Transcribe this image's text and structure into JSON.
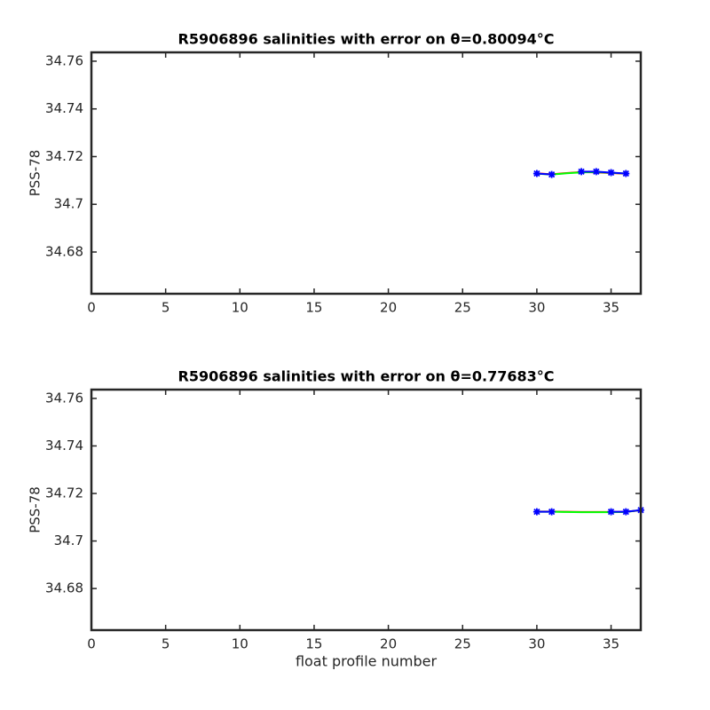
{
  "chart_data": [
    {
      "type": "line",
      "title": "R5906896 salinities with error on θ=0.80094°C",
      "ylabel": "PSS-78",
      "x": [
        30,
        31,
        32,
        33,
        34,
        35,
        36
      ],
      "series": [
        {
          "color": "#ff0000",
          "values": [
            34.713,
            34.7126,
            34.7131,
            34.7135,
            34.7134,
            34.7131,
            34.7128
          ]
        },
        {
          "color": "#00ff00",
          "values": [
            34.7128,
            34.7125,
            34.713,
            34.7134,
            34.7135,
            34.7132,
            34.7129
          ]
        },
        {
          "color": "#0000ff",
          "marker": "star",
          "values": [
            34.7129,
            34.7125,
            null,
            34.7137,
            34.7137,
            34.7133,
            34.7129
          ]
        }
      ],
      "xlim": [
        0,
        37
      ],
      "ylim": [
        34.6625,
        34.7637
      ],
      "xticks": [
        0,
        5,
        10,
        15,
        20,
        25,
        30,
        35
      ],
      "yticks": [
        34.68,
        34.7,
        34.72,
        34.74,
        34.76
      ],
      "grid": false
    },
    {
      "type": "line",
      "title": "R5906896 salinities with error on θ=0.77683°C",
      "ylabel": "PSS-78",
      "xlabel": "float profile number",
      "x": [
        30,
        31,
        32,
        33,
        34,
        35,
        36,
        37
      ],
      "series": [
        {
          "color": "#ff0000",
          "values": [
            34.7124,
            34.7124,
            34.7123,
            34.7122,
            34.7122,
            34.7122,
            34.7123,
            34.7129
          ]
        },
        {
          "color": "#00ff00",
          "values": [
            34.7123,
            34.7123,
            34.7122,
            34.7121,
            34.7121,
            34.7121,
            34.7122,
            34.713
          ]
        },
        {
          "color": "#0000ff",
          "marker": "star",
          "values": [
            34.7123,
            34.7123,
            null,
            null,
            null,
            34.7123,
            34.7123,
            34.713
          ]
        }
      ],
      "xlim": [
        0,
        37
      ],
      "ylim": [
        34.6625,
        34.7637
      ],
      "xticks": [
        0,
        5,
        10,
        15,
        20,
        25,
        30,
        35
      ],
      "yticks": [
        34.68,
        34.7,
        34.72,
        34.74,
        34.76
      ],
      "grid": false
    }
  ]
}
